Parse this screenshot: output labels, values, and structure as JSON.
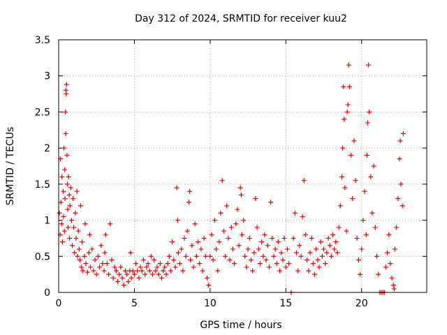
{
  "chart_data": {
    "type": "scatter",
    "title": "Day 312 of 2024, SRMTID for receiver kuu2",
    "xlabel": "GPS time / hours",
    "ylabel": "SRMTID / TECUs",
    "xlim": [
      0,
      24.3
    ],
    "ylim": [
      0,
      3.5
    ],
    "xticks": [
      0,
      5,
      10,
      15,
      20
    ],
    "xtick_labels": [
      "0",
      "5",
      "10",
      "15",
      "20"
    ],
    "yticks": [
      0,
      0.5,
      1,
      1.5,
      2,
      2.5,
      3,
      3.5
    ],
    "ytick_labels": [
      "0",
      "0.5",
      "1",
      "1.5",
      "2",
      "2.5",
      "3",
      "3.5"
    ],
    "grid": true,
    "marker": "+",
    "color": "#e00000",
    "series": [
      {
        "name": "SRMTID",
        "points": [
          [
            0.05,
            1.1
          ],
          [
            0.1,
            0.8
          ],
          [
            0.12,
            1.85
          ],
          [
            0.15,
            1.25
          ],
          [
            0.2,
            0.95
          ],
          [
            0.22,
            1.6
          ],
          [
            0.25,
            0.7
          ],
          [
            0.3,
            1.4
          ],
          [
            0.32,
            1.05
          ],
          [
            0.35,
            2.0
          ],
          [
            0.38,
            0.85
          ],
          [
            0.4,
            1.7
          ],
          [
            0.42,
            1.3
          ],
          [
            0.45,
            2.5
          ],
          [
            0.47,
            2.2
          ],
          [
            0.48,
            2.8
          ],
          [
            0.5,
            2.75
          ],
          [
            0.52,
            2.88
          ],
          [
            0.55,
            1.9
          ],
          [
            0.57,
            1.5
          ],
          [
            0.6,
            1.15
          ],
          [
            0.62,
            0.9
          ],
          [
            0.65,
            1.6
          ],
          [
            0.7,
            1.35
          ],
          [
            0.72,
            0.75
          ],
          [
            0.75,
            1.2
          ],
          [
            0.8,
            1.45
          ],
          [
            0.85,
            1.0
          ],
          [
            0.9,
            0.65
          ],
          [
            0.95,
            1.3
          ],
          [
            1.0,
            0.9
          ],
          [
            1.05,
            0.55
          ],
          [
            1.1,
            1.1
          ],
          [
            1.15,
            0.75
          ],
          [
            1.2,
            1.4
          ],
          [
            1.25,
            0.5
          ],
          [
            1.3,
            0.85
          ],
          [
            1.35,
            0.6
          ],
          [
            1.4,
            0.45
          ],
          [
            1.45,
            1.2
          ],
          [
            1.5,
            0.35
          ],
          [
            1.55,
            0.7
          ],
          [
            1.6,
            0.3
          ],
          [
            1.7,
            0.5
          ],
          [
            1.75,
            0.95
          ],
          [
            1.8,
            0.4
          ],
          [
            1.9,
            0.28
          ],
          [
            2.0,
            0.55
          ],
          [
            2.05,
            0.8
          ],
          [
            2.1,
            0.35
          ],
          [
            2.2,
            0.6
          ],
          [
            2.3,
            0.3
          ],
          [
            2.4,
            0.45
          ],
          [
            2.5,
            0.25
          ],
          [
            2.6,
            0.5
          ],
          [
            2.7,
            0.35
          ],
          [
            2.8,
            0.65
          ],
          [
            2.9,
            0.4
          ],
          [
            3.0,
            0.3
          ],
          [
            3.05,
            0.55
          ],
          [
            3.1,
            0.8
          ],
          [
            3.2,
            0.4
          ],
          [
            3.3,
            0.25
          ],
          [
            3.4,
            0.95
          ],
          [
            3.5,
            0.45
          ],
          [
            3.6,
            0.2
          ],
          [
            3.7,
            0.35
          ],
          [
            3.8,
            0.3
          ],
          [
            3.9,
            0.15
          ],
          [
            4.0,
            0.25
          ],
          [
            4.1,
            0.35
          ],
          [
            4.2,
            0.2
          ],
          [
            4.3,
            0.1
          ],
          [
            4.4,
            0.3
          ],
          [
            4.5,
            0.25
          ],
          [
            4.6,
            0.15
          ],
          [
            4.7,
            0.3
          ],
          [
            4.75,
            0.55
          ],
          [
            4.8,
            0.2
          ],
          [
            4.9,
            0.3
          ],
          [
            5.0,
            0.25
          ],
          [
            5.1,
            0.4
          ],
          [
            5.2,
            0.3
          ],
          [
            5.3,
            0.2
          ],
          [
            5.4,
            0.35
          ],
          [
            5.5,
            0.3
          ],
          [
            5.6,
            0.45
          ],
          [
            5.7,
            0.25
          ],
          [
            5.8,
            0.35
          ],
          [
            5.9,
            0.4
          ],
          [
            6.0,
            0.3
          ],
          [
            6.1,
            0.5
          ],
          [
            6.2,
            0.25
          ],
          [
            6.3,
            0.45
          ],
          [
            6.4,
            0.3
          ],
          [
            6.5,
            0.35
          ],
          [
            6.6,
            0.25
          ],
          [
            6.7,
            0.4
          ],
          [
            6.8,
            0.2
          ],
          [
            6.9,
            0.3
          ],
          [
            7.0,
            0.35
          ],
          [
            7.1,
            0.25
          ],
          [
            7.2,
            0.4
          ],
          [
            7.3,
            0.5
          ],
          [
            7.4,
            0.3
          ],
          [
            7.5,
            0.7
          ],
          [
            7.6,
            0.45
          ],
          [
            7.7,
            0.35
          ],
          [
            7.8,
            1.45
          ],
          [
            7.85,
            1.0
          ],
          [
            7.9,
            0.55
          ],
          [
            8.0,
            0.4
          ],
          [
            8.1,
            0.6
          ],
          [
            8.2,
            0.3
          ],
          [
            8.3,
            0.75
          ],
          [
            8.4,
            0.5
          ],
          [
            8.5,
            0.85
          ],
          [
            8.6,
            1.25
          ],
          [
            8.65,
            1.4
          ],
          [
            8.7,
            0.45
          ],
          [
            8.8,
            0.65
          ],
          [
            8.9,
            0.35
          ],
          [
            9.0,
            0.95
          ],
          [
            9.1,
            0.5
          ],
          [
            9.2,
            0.7
          ],
          [
            9.3,
            0.4
          ],
          [
            9.4,
            0.6
          ],
          [
            9.5,
            0.3
          ],
          [
            9.6,
            0.75
          ],
          [
            9.7,
            0.5
          ],
          [
            9.8,
            0.2
          ],
          [
            9.9,
            0.1
          ],
          [
            10.0,
            0.5
          ],
          [
            10.1,
            0.8
          ],
          [
            10.2,
            0.45
          ],
          [
            10.3,
            1.0
          ],
          [
            10.4,
            0.6
          ],
          [
            10.5,
            0.3
          ],
          [
            10.6,
            0.7
          ],
          [
            10.7,
            1.1
          ],
          [
            10.8,
            1.55
          ],
          [
            10.9,
            0.85
          ],
          [
            11.0,
            0.5
          ],
          [
            11.1,
            1.2
          ],
          [
            11.2,
            0.75
          ],
          [
            11.3,
            0.45
          ],
          [
            11.4,
            0.9
          ],
          [
            11.5,
            0.6
          ],
          [
            11.6,
            0.4
          ],
          [
            11.7,
            0.95
          ],
          [
            11.8,
            1.15
          ],
          [
            11.9,
            0.65
          ],
          [
            12.0,
            1.45
          ],
          [
            12.05,
            1.35
          ],
          [
            12.1,
            0.8
          ],
          [
            12.2,
            1.0
          ],
          [
            12.3,
            0.5
          ],
          [
            12.4,
            0.35
          ],
          [
            12.5,
            0.6
          ],
          [
            12.6,
            0.75
          ],
          [
            12.7,
            0.45
          ],
          [
            12.8,
            0.3
          ],
          [
            12.9,
            0.55
          ],
          [
            13.0,
            1.3
          ],
          [
            13.1,
            0.9
          ],
          [
            13.2,
            0.6
          ],
          [
            13.3,
            0.4
          ],
          [
            13.4,
            0.7
          ],
          [
            13.5,
            0.5
          ],
          [
            13.6,
            0.8
          ],
          [
            13.7,
            0.45
          ],
          [
            13.8,
            0.65
          ],
          [
            13.9,
            0.35
          ],
          [
            14.0,
            1.25
          ],
          [
            14.1,
            0.75
          ],
          [
            14.2,
            0.5
          ],
          [
            14.3,
            0.6
          ],
          [
            14.4,
            0.4
          ],
          [
            14.5,
            0.7
          ],
          [
            14.6,
            0.3
          ],
          [
            14.7,
            0.55
          ],
          [
            14.8,
            0.45
          ],
          [
            14.9,
            0.75
          ],
          [
            15.0,
            0.35
          ],
          [
            15.1,
            0.6
          ],
          [
            15.2,
            0.4
          ],
          [
            15.35,
            0.0
          ],
          [
            15.5,
            0.75
          ],
          [
            15.6,
            1.1
          ],
          [
            15.7,
            0.55
          ],
          [
            15.8,
            0.3
          ],
          [
            15.9,
            0.65
          ],
          [
            16.0,
            0.5
          ],
          [
            16.1,
            1.05
          ],
          [
            16.2,
            1.55
          ],
          [
            16.3,
            0.8
          ],
          [
            16.4,
            0.45
          ],
          [
            16.5,
            0.3
          ],
          [
            16.6,
            0.55
          ],
          [
            16.7,
            0.75
          ],
          [
            16.8,
            0.4
          ],
          [
            16.9,
            0.25
          ],
          [
            17.0,
            0.6
          ],
          [
            17.1,
            0.45
          ],
          [
            17.2,
            0.35
          ],
          [
            17.3,
            0.7
          ],
          [
            17.4,
            0.5
          ],
          [
            17.5,
            0.6
          ],
          [
            17.6,
            0.4
          ],
          [
            17.7,
            0.55
          ],
          [
            17.8,
            0.75
          ],
          [
            17.9,
            0.65
          ],
          [
            18.0,
            0.5
          ],
          [
            18.1,
            0.8
          ],
          [
            18.2,
            0.6
          ],
          [
            18.3,
            0.7
          ],
          [
            18.4,
            0.55
          ],
          [
            18.5,
            0.9
          ],
          [
            18.6,
            1.2
          ],
          [
            18.7,
            1.6
          ],
          [
            18.75,
            2.0
          ],
          [
            18.8,
            2.85
          ],
          [
            18.85,
            2.4
          ],
          [
            18.9,
            1.45
          ],
          [
            19.0,
            0.85
          ],
          [
            19.05,
            2.5
          ],
          [
            19.1,
            2.6
          ],
          [
            19.15,
            3.15
          ],
          [
            19.2,
            2.85
          ],
          [
            19.3,
            1.9
          ],
          [
            19.4,
            1.3
          ],
          [
            19.5,
            2.1
          ],
          [
            19.6,
            1.55
          ],
          [
            19.7,
            0.75
          ],
          [
            19.8,
            0.45
          ],
          [
            19.9,
            0.25
          ],
          [
            20.0,
            0.6
          ],
          [
            20.1,
            1.0
          ],
          [
            20.2,
            1.4
          ],
          [
            20.3,
            0.8
          ],
          [
            20.35,
            1.9
          ],
          [
            20.4,
            2.35
          ],
          [
            20.45,
            3.15
          ],
          [
            20.5,
            2.5
          ],
          [
            20.6,
            1.6
          ],
          [
            20.7,
            1.1
          ],
          [
            20.8,
            1.75
          ],
          [
            20.9,
            0.9
          ],
          [
            21.0,
            0.5
          ],
          [
            21.1,
            0.25
          ],
          [
            21.2,
            0.0
          ],
          [
            21.3,
            0.0
          ],
          [
            21.4,
            0.0
          ],
          [
            21.5,
            0.0
          ],
          [
            21.6,
            0.35
          ],
          [
            21.7,
            0.55
          ],
          [
            21.8,
            0.8
          ],
          [
            21.9,
            0.4
          ],
          [
            22.0,
            0.2
          ],
          [
            22.1,
            0.1
          ],
          [
            22.15,
            0.05
          ],
          [
            22.2,
            0.6
          ],
          [
            22.3,
            0.9
          ],
          [
            22.4,
            1.3
          ],
          [
            22.5,
            1.85
          ],
          [
            22.55,
            2.1
          ],
          [
            22.6,
            1.5
          ],
          [
            22.7,
            1.2
          ],
          [
            22.75,
            2.2
          ]
        ]
      }
    ]
  }
}
